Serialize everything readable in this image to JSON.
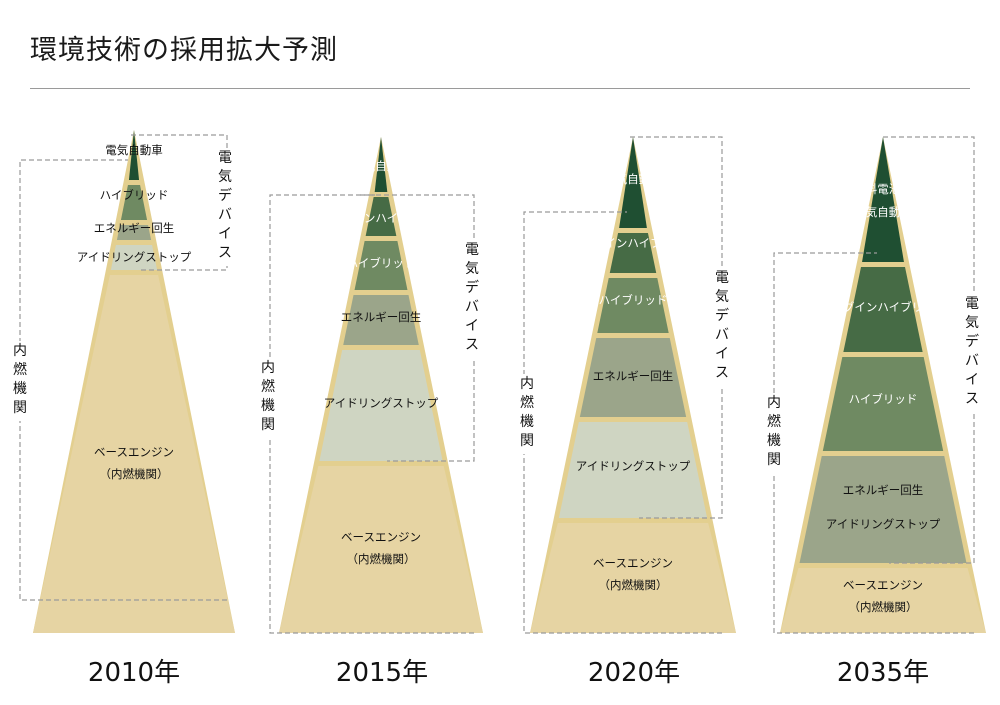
{
  "title": "環境技術の採用拡大予測",
  "colors": {
    "base": "#e6d4a3",
    "idle_stop": "#cfd5c2",
    "energy_regen": "#9ba58a",
    "hybrid": "#6f8a62",
    "plugin_hybrid": "#466b45",
    "ev": "#1f4f32",
    "divider": "#e3cf8f",
    "bracket": "#9a9a9a"
  },
  "bracket_labels": {
    "electric": "電気デバイス",
    "ice": "内燃機関"
  },
  "periods": [
    {
      "year": "2010年",
      "layers": [
        {
          "key": "base",
          "label": "ベースエンジン",
          "sublabel": "（内燃機関）"
        },
        {
          "key": "idle_stop",
          "label": "アイドリングストップ"
        },
        {
          "key": "energy_regen",
          "label": "エネルギー回生"
        },
        {
          "key": "hybrid",
          "label": "ハイブリッド"
        },
        {
          "key": "ev",
          "label": "電気自動車"
        }
      ]
    },
    {
      "year": "2015年",
      "layers": [
        {
          "key": "base",
          "label": "ベースエンジン",
          "sublabel": "（内燃機関）"
        },
        {
          "key": "idle_stop",
          "label": "アイドリングストップ"
        },
        {
          "key": "energy_regen",
          "label": "エネルギー回生"
        },
        {
          "key": "hybrid",
          "label": "ハイブリッド"
        },
        {
          "key": "plugin_hybrid",
          "label": "プラグインハイブリッド"
        },
        {
          "key": "ev",
          "label": "電気自動車"
        }
      ]
    },
    {
      "year": "2020年",
      "layers": [
        {
          "key": "base",
          "label": "ベースエンジン",
          "sublabel": "（内燃機関）"
        },
        {
          "key": "idle_stop",
          "label": "アイドリングストップ"
        },
        {
          "key": "energy_regen",
          "label": "エネルギー回生"
        },
        {
          "key": "hybrid",
          "label": "ハイブリッド"
        },
        {
          "key": "plugin_hybrid",
          "label": "プラグインハイブリッド"
        },
        {
          "key": "ev",
          "label": "電気自動車"
        }
      ]
    },
    {
      "year": "2035年",
      "layers": [
        {
          "key": "base",
          "label": "ベースエンジン",
          "sublabel": "（内燃機関）"
        },
        {
          "key": "idle_regen",
          "label": "エネルギー回生",
          "label2": "アイドリングストップ"
        },
        {
          "key": "hybrid",
          "label": "ハイブリッド"
        },
        {
          "key": "plugin_hybrid",
          "label": "プラグインハイブリッド"
        },
        {
          "key": "fcv_ev",
          "label": "燃料電池・",
          "label2": "電気自動車"
        }
      ]
    }
  ]
}
